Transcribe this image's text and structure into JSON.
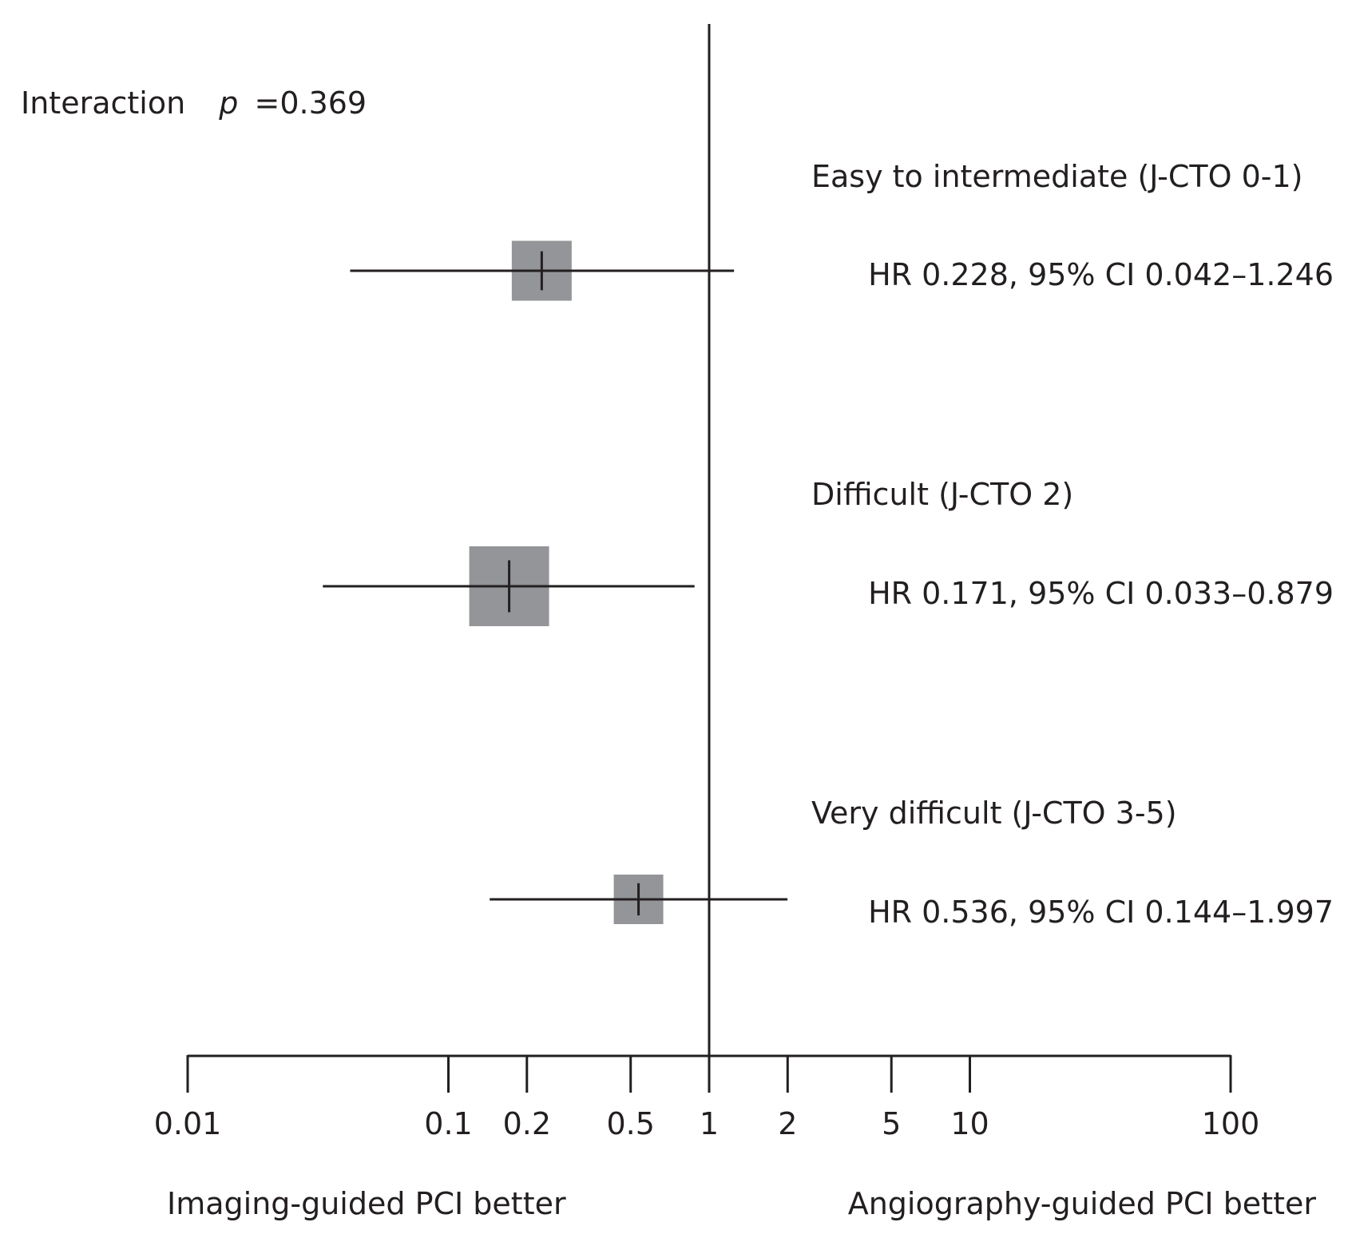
{
  "chart_data": {
    "type": "forest",
    "x_scale": "log",
    "xlim": [
      0.01,
      100
    ],
    "reference_value": 1,
    "ticks": [
      0.01,
      0.1,
      0.2,
      0.5,
      1,
      2,
      5,
      10,
      100
    ],
    "tick_labels": [
      "0.01",
      "0.1",
      "0.2",
      "0.5",
      "1",
      "2",
      "5",
      "10",
      "100"
    ],
    "annotation": {
      "prefix": "Interaction",
      "p_symbol": "p",
      "value": "=0.369"
    },
    "left_label": "Imaging-guided PCI better",
    "right_label": "Angiography-guided PCI better",
    "marker_color": "#939598",
    "line_color": "#231f20",
    "rows": [
      {
        "group": "Easy to intermediate (J-CTO 0-1)",
        "hr": 0.228,
        "ci_low": 0.042,
        "ci_high": 1.246,
        "stat_text": "HR 0.228, 95% CI 0.042–1.246",
        "weight": 0.75
      },
      {
        "group": "Difficult (J-CTO 2)",
        "hr": 0.171,
        "ci_low": 0.033,
        "ci_high": 0.879,
        "stat_text": "HR 0.171, 95% CI 0.033–0.879",
        "weight": 1.0
      },
      {
        "group": "Very difficult (J-CTO 3-5)",
        "hr": 0.536,
        "ci_low": 0.144,
        "ci_high": 1.997,
        "stat_text": "HR 0.536, 95% CI 0.144–1.997",
        "weight": 0.62
      }
    ]
  }
}
